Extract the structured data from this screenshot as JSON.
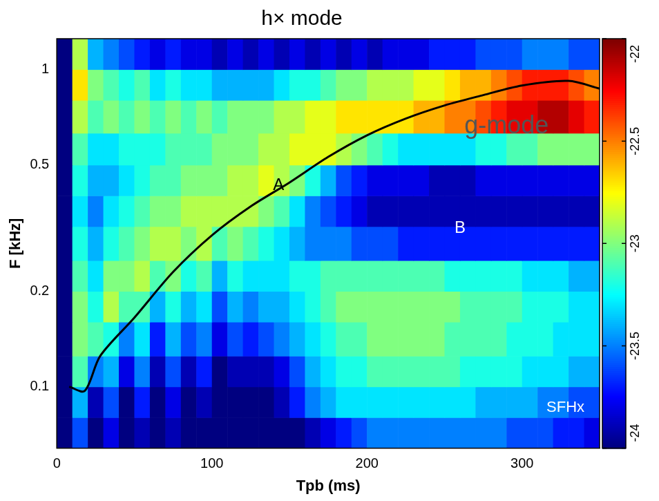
{
  "chart_data": {
    "type": "heatmap",
    "title": "h× mode",
    "x_label": "Tpb (ms)",
    "y_label": "F [kHz]",
    "log": "y",
    "grid": false,
    "xlim": [
      0,
      350
    ],
    "xticks": [
      0,
      100,
      200,
      300
    ],
    "ylim": [
      0.064,
      1.25
    ],
    "yticks": [
      0.1,
      0.2,
      0.5,
      1
    ],
    "cells": {
      "x_bins": [
        0,
        10,
        20,
        30,
        40,
        50,
        60,
        70,
        80,
        90,
        100,
        110,
        120,
        130,
        140,
        150,
        160,
        170,
        180,
        190,
        200,
        210,
        220,
        230,
        240,
        250,
        260,
        270,
        280,
        290,
        300,
        310,
        320,
        330,
        340,
        350
      ],
      "y_bins": [
        0.064,
        0.08,
        0.1,
        0.125,
        0.16,
        0.2,
        0.25,
        0.32,
        0.4,
        0.5,
        0.63,
        0.8,
        1.0,
        1.25
      ],
      "values": [
        [
          -24,
          -23.6,
          -24,
          -23.8,
          -24,
          -23.9,
          -24,
          -23.9,
          -24,
          -24,
          -24,
          -24,
          -24,
          -24,
          -24,
          -24,
          -23.9,
          -23.8,
          -23.7,
          -23.6,
          -23.5,
          -23.5,
          -23.5,
          -23.5,
          -23.5,
          -23.5,
          -23.5,
          -23.5,
          -23.5,
          -23.6,
          -23.6,
          -23.6,
          -23.7,
          -23.7,
          -23.8
        ],
        [
          -24,
          -23.4,
          -23.9,
          -23.6,
          -24,
          -23.7,
          -24,
          -23.8,
          -24,
          -23.9,
          -24,
          -24,
          -24,
          -24,
          -23.9,
          -23.7,
          -23.5,
          -23.4,
          -23.3,
          -23.3,
          -23.3,
          -23.3,
          -23.3,
          -23.3,
          -23.3,
          -23.3,
          -23.3,
          -23.4,
          -23.4,
          -23.4,
          -23.4,
          -23.5,
          -23.5,
          -23.6,
          -23.6
        ],
        [
          -24,
          -23.1,
          -23.5,
          -23.4,
          -23.8,
          -23.5,
          -23.9,
          -23.6,
          -23.9,
          -23.7,
          -24,
          -23.9,
          -23.9,
          -23.9,
          -23.8,
          -23.6,
          -23.4,
          -23.3,
          -23.2,
          -23.2,
          -23.1,
          -23.1,
          -23.1,
          -23.1,
          -23.1,
          -23.1,
          -23.2,
          -23.2,
          -23.2,
          -23.2,
          -23.3,
          -23.3,
          -23.3,
          -23.4,
          -23.4
        ],
        [
          -24,
          -23.0,
          -23.1,
          -23.2,
          -23.5,
          -23.3,
          -23.7,
          -23.4,
          -23.6,
          -23.5,
          -23.8,
          -23.6,
          -23.7,
          -23.6,
          -23.5,
          -23.4,
          -23.3,
          -23.2,
          -23.1,
          -23.1,
          -23.0,
          -23.0,
          -23.0,
          -23.0,
          -23.0,
          -23.1,
          -23.1,
          -23.1,
          -23.1,
          -23.2,
          -23.2,
          -23.2,
          -23.3,
          -23.3,
          -23.3
        ],
        [
          -24,
          -23.0,
          -23.2,
          -22.9,
          -23.1,
          -23.1,
          -23.4,
          -23.2,
          -23.4,
          -23.3,
          -23.6,
          -23.4,
          -23.5,
          -23.4,
          -23.4,
          -23.3,
          -23.2,
          -23.1,
          -23.0,
          -23.0,
          -23.0,
          -23.0,
          -23.0,
          -23.0,
          -23.0,
          -23.0,
          -23.1,
          -23.1,
          -23.1,
          -23.1,
          -23.2,
          -23.2,
          -23.2,
          -23.3,
          -23.3
        ],
        [
          -24,
          -23.1,
          -23.3,
          -23.0,
          -23.0,
          -22.9,
          -23.1,
          -23.0,
          -23.2,
          -23.1,
          -23.4,
          -23.2,
          -23.3,
          -23.3,
          -23.3,
          -23.2,
          -23.2,
          -23.1,
          -23.1,
          -23.1,
          -23.1,
          -23.1,
          -23.1,
          -23.1,
          -23.1,
          -23.2,
          -23.2,
          -23.2,
          -23.2,
          -23.2,
          -23.3,
          -23.3,
          -23.3,
          -23.4,
          -23.4
        ],
        [
          -24,
          -23.2,
          -23.4,
          -23.2,
          -23.1,
          -23.0,
          -22.9,
          -22.9,
          -23.0,
          -22.9,
          -23.1,
          -23.0,
          -23.1,
          -23.2,
          -23.3,
          -23.4,
          -23.5,
          -23.5,
          -23.5,
          -23.6,
          -23.6,
          -23.6,
          -23.7,
          -23.7,
          -23.7,
          -23.7,
          -23.7,
          -23.7,
          -23.7,
          -23.7,
          -23.7,
          -23.7,
          -23.7,
          -23.7,
          -23.7
        ],
        [
          -24,
          -23.3,
          -23.5,
          -23.3,
          -23.2,
          -23.1,
          -23.0,
          -23.0,
          -22.9,
          -22.9,
          -22.9,
          -22.9,
          -22.9,
          -23.0,
          -23.1,
          -23.3,
          -23.5,
          -23.6,
          -23.7,
          -23.8,
          -23.9,
          -23.9,
          -23.9,
          -23.9,
          -23.9,
          -23.9,
          -23.9,
          -23.9,
          -23.9,
          -23.9,
          -23.9,
          -23.9,
          -23.9,
          -23.9,
          -23.9
        ],
        [
          -24,
          -23.2,
          -23.4,
          -23.4,
          -23.3,
          -23.2,
          -23.1,
          -23.1,
          -23.0,
          -23.0,
          -23.0,
          -22.9,
          -22.9,
          -22.8,
          -22.9,
          -23.0,
          -23.2,
          -23.4,
          -23.6,
          -23.7,
          -23.8,
          -23.8,
          -23.8,
          -23.8,
          -23.9,
          -23.9,
          -23.9,
          -23.8,
          -23.8,
          -23.8,
          -23.8,
          -23.8,
          -23.8,
          -23.8,
          -23.8
        ],
        [
          -24,
          -23.1,
          -23.3,
          -23.3,
          -23.2,
          -23.2,
          -23.2,
          -23.1,
          -23.1,
          -23.1,
          -23.0,
          -23.0,
          -23.0,
          -22.9,
          -22.9,
          -22.8,
          -22.8,
          -22.8,
          -22.9,
          -23.0,
          -23.1,
          -23.2,
          -23.3,
          -23.3,
          -23.3,
          -23.3,
          -23.3,
          -23.2,
          -23.2,
          -23.1,
          -23.1,
          -23.0,
          -23.0,
          -23.0,
          -23.0
        ],
        [
          -24,
          -22.9,
          -23.1,
          -23.0,
          -23.1,
          -23.0,
          -23.1,
          -23.0,
          -23.1,
          -23.0,
          -23.1,
          -23.0,
          -23.0,
          -23.0,
          -22.9,
          -22.9,
          -22.8,
          -22.8,
          -22.7,
          -22.7,
          -22.7,
          -22.7,
          -22.7,
          -22.6,
          -22.6,
          -22.5,
          -22.5,
          -22.4,
          -22.3,
          -22.2,
          -22.2,
          -22.1,
          -22.1,
          -22.2,
          -22.3
        ],
        [
          -24,
          -22.7,
          -23.0,
          -23.1,
          -23.2,
          -23.1,
          -23.3,
          -23.2,
          -23.3,
          -23.3,
          -23.4,
          -23.4,
          -23.4,
          -23.4,
          -23.3,
          -23.2,
          -23.2,
          -23.1,
          -23.0,
          -23.0,
          -22.9,
          -22.9,
          -22.9,
          -22.8,
          -22.8,
          -22.7,
          -22.6,
          -22.6,
          -22.5,
          -22.4,
          -22.3,
          -22.3,
          -22.3,
          -22.4,
          -22.5
        ],
        [
          -24,
          -22.9,
          -23.4,
          -23.5,
          -23.6,
          -23.7,
          -23.8,
          -23.7,
          -23.8,
          -23.8,
          -23.9,
          -23.8,
          -23.9,
          -23.8,
          -23.9,
          -23.8,
          -23.9,
          -23.8,
          -23.9,
          -23.8,
          -23.9,
          -23.8,
          -23.8,
          -23.8,
          -23.7,
          -23.7,
          -23.7,
          -23.6,
          -23.6,
          -23.6,
          -23.5,
          -23.5,
          -23.5,
          -23.6,
          -23.6
        ]
      ]
    },
    "colorbar": {
      "range": [
        -24,
        -22
      ],
      "ticks": [
        -24,
        -23.5,
        -23,
        -22.5,
        -22
      ]
    },
    "series": [
      {
        "type": "line",
        "color": "#000000",
        "line_style": "solid",
        "x": [
          8,
          18,
          28,
          50,
          75,
          100,
          125,
          150,
          175,
          200,
          225,
          250,
          275,
          300,
          330,
          350
        ],
        "values": [
          0.1,
          0.097,
          0.125,
          0.165,
          0.23,
          0.3,
          0.37,
          0.44,
          0.53,
          0.62,
          0.7,
          0.77,
          0.83,
          0.89,
          0.92,
          0.87
        ]
      }
    ],
    "annotations": [
      {
        "text": "A",
        "x": 143,
        "y": 0.43,
        "color": "#000000"
      },
      {
        "text": "B",
        "x": 260,
        "y": 0.315,
        "color": "#ffffff"
      },
      {
        "text": "g-mode",
        "x": 290,
        "y": 0.66,
        "color": "#555555"
      },
      {
        "text": "SFHx",
        "x": 328,
        "y": 0.086,
        "color": "#ffffff"
      }
    ]
  }
}
